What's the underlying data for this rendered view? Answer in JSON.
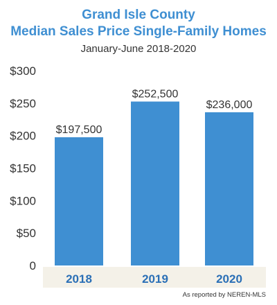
{
  "header": {
    "title_line1": "Grand Isle County",
    "title_line2": "Median Sales Price Single-Family Homes",
    "subtitle": "January-June 2018-2020"
  },
  "source_note": "As reported by NEREN-MLS",
  "colors": {
    "title": "#3f8fd2",
    "bar": "#3f8fd2",
    "category_label": "#2a6fb6",
    "category_band": "#f4f1e8"
  },
  "chart_data": {
    "type": "bar",
    "title": "Grand Isle County Median Sales Price Single-Family Homes",
    "subtitle": "January-June 2018-2020",
    "categories": [
      "2018",
      "2019",
      "2020"
    ],
    "values": [
      197500,
      252500,
      236000
    ],
    "data_labels": [
      "$197,500",
      "$252,500",
      "$236,000"
    ],
    "ylim": [
      0,
      300000
    ],
    "yticks": [
      {
        "value": 300000,
        "label": "$300"
      },
      {
        "value": 250000,
        "label": "$250"
      },
      {
        "value": 200000,
        "label": "$200"
      },
      {
        "value": 150000,
        "label": "$150"
      },
      {
        "value": 100000,
        "label": "$100"
      },
      {
        "value": 50000,
        "label": "$50"
      },
      {
        "value": 0,
        "label": "0"
      }
    ],
    "grid": false,
    "legend": "none"
  }
}
